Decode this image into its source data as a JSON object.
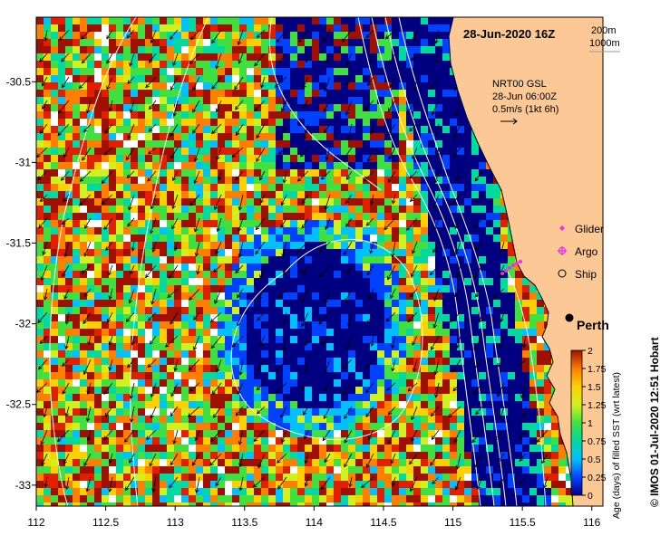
{
  "title": "28-Jun-2020 16Z",
  "depth_legend": {
    "contour_1": "200m",
    "contour_2": "1000m"
  },
  "current_info": {
    "product": "NRT00 GSL",
    "time": "28-Jun 06:00Z",
    "scale": "0.5m/s (1kt 6h)"
  },
  "markers_legend": [
    {
      "label": "Glider",
      "color": "#e830e8",
      "symbol": "diamond"
    },
    {
      "label": "Argo",
      "color": "#e830e8",
      "symbol": "circle-star"
    },
    {
      "label": "Ship",
      "color": "#000000",
      "symbol": "circle"
    }
  ],
  "place": {
    "name": "Perth",
    "lon": 115.86,
    "lat": -31.95
  },
  "axes": {
    "x_range": [
      112,
      116.08
    ],
    "y_range": [
      -33.13,
      -30.1
    ],
    "x_ticks": [
      112,
      112.5,
      113,
      113.5,
      114,
      114.5,
      115,
      115.5,
      116
    ],
    "x_tick_labels": [
      "112",
      "112.5",
      "113",
      "113.5",
      "114",
      "114.5",
      "115",
      "115.5",
      "116"
    ],
    "y_ticks": [
      -30.5,
      -31,
      -31.5,
      -32,
      -32.5,
      -33
    ],
    "y_tick_labels": [
      "-30.5",
      "-31",
      "-31.5",
      "-32",
      "-32.5",
      "-33"
    ]
  },
  "colorbar": {
    "title": "Age (days) of filled SST (wrt latest)",
    "min": 0,
    "max": 2,
    "ticks": [
      "0",
      "0.25",
      "0.5",
      "0.75",
      "1",
      "1.25",
      "1.5",
      "1.75",
      "2"
    ],
    "colors": [
      "#000080",
      "#0040ff",
      "#00c0ff",
      "#00d9a0",
      "#40e040",
      "#d0f020",
      "#ffd000",
      "#ff8000",
      "#e02000",
      "#a01000"
    ]
  },
  "credit": "© IMOS 01-Jul-2020 12:51 Hobart",
  "colors": {
    "land": "#fcc896",
    "gap": "#ffffff",
    "contour": "#ffffff",
    "coast": "#000000"
  }
}
